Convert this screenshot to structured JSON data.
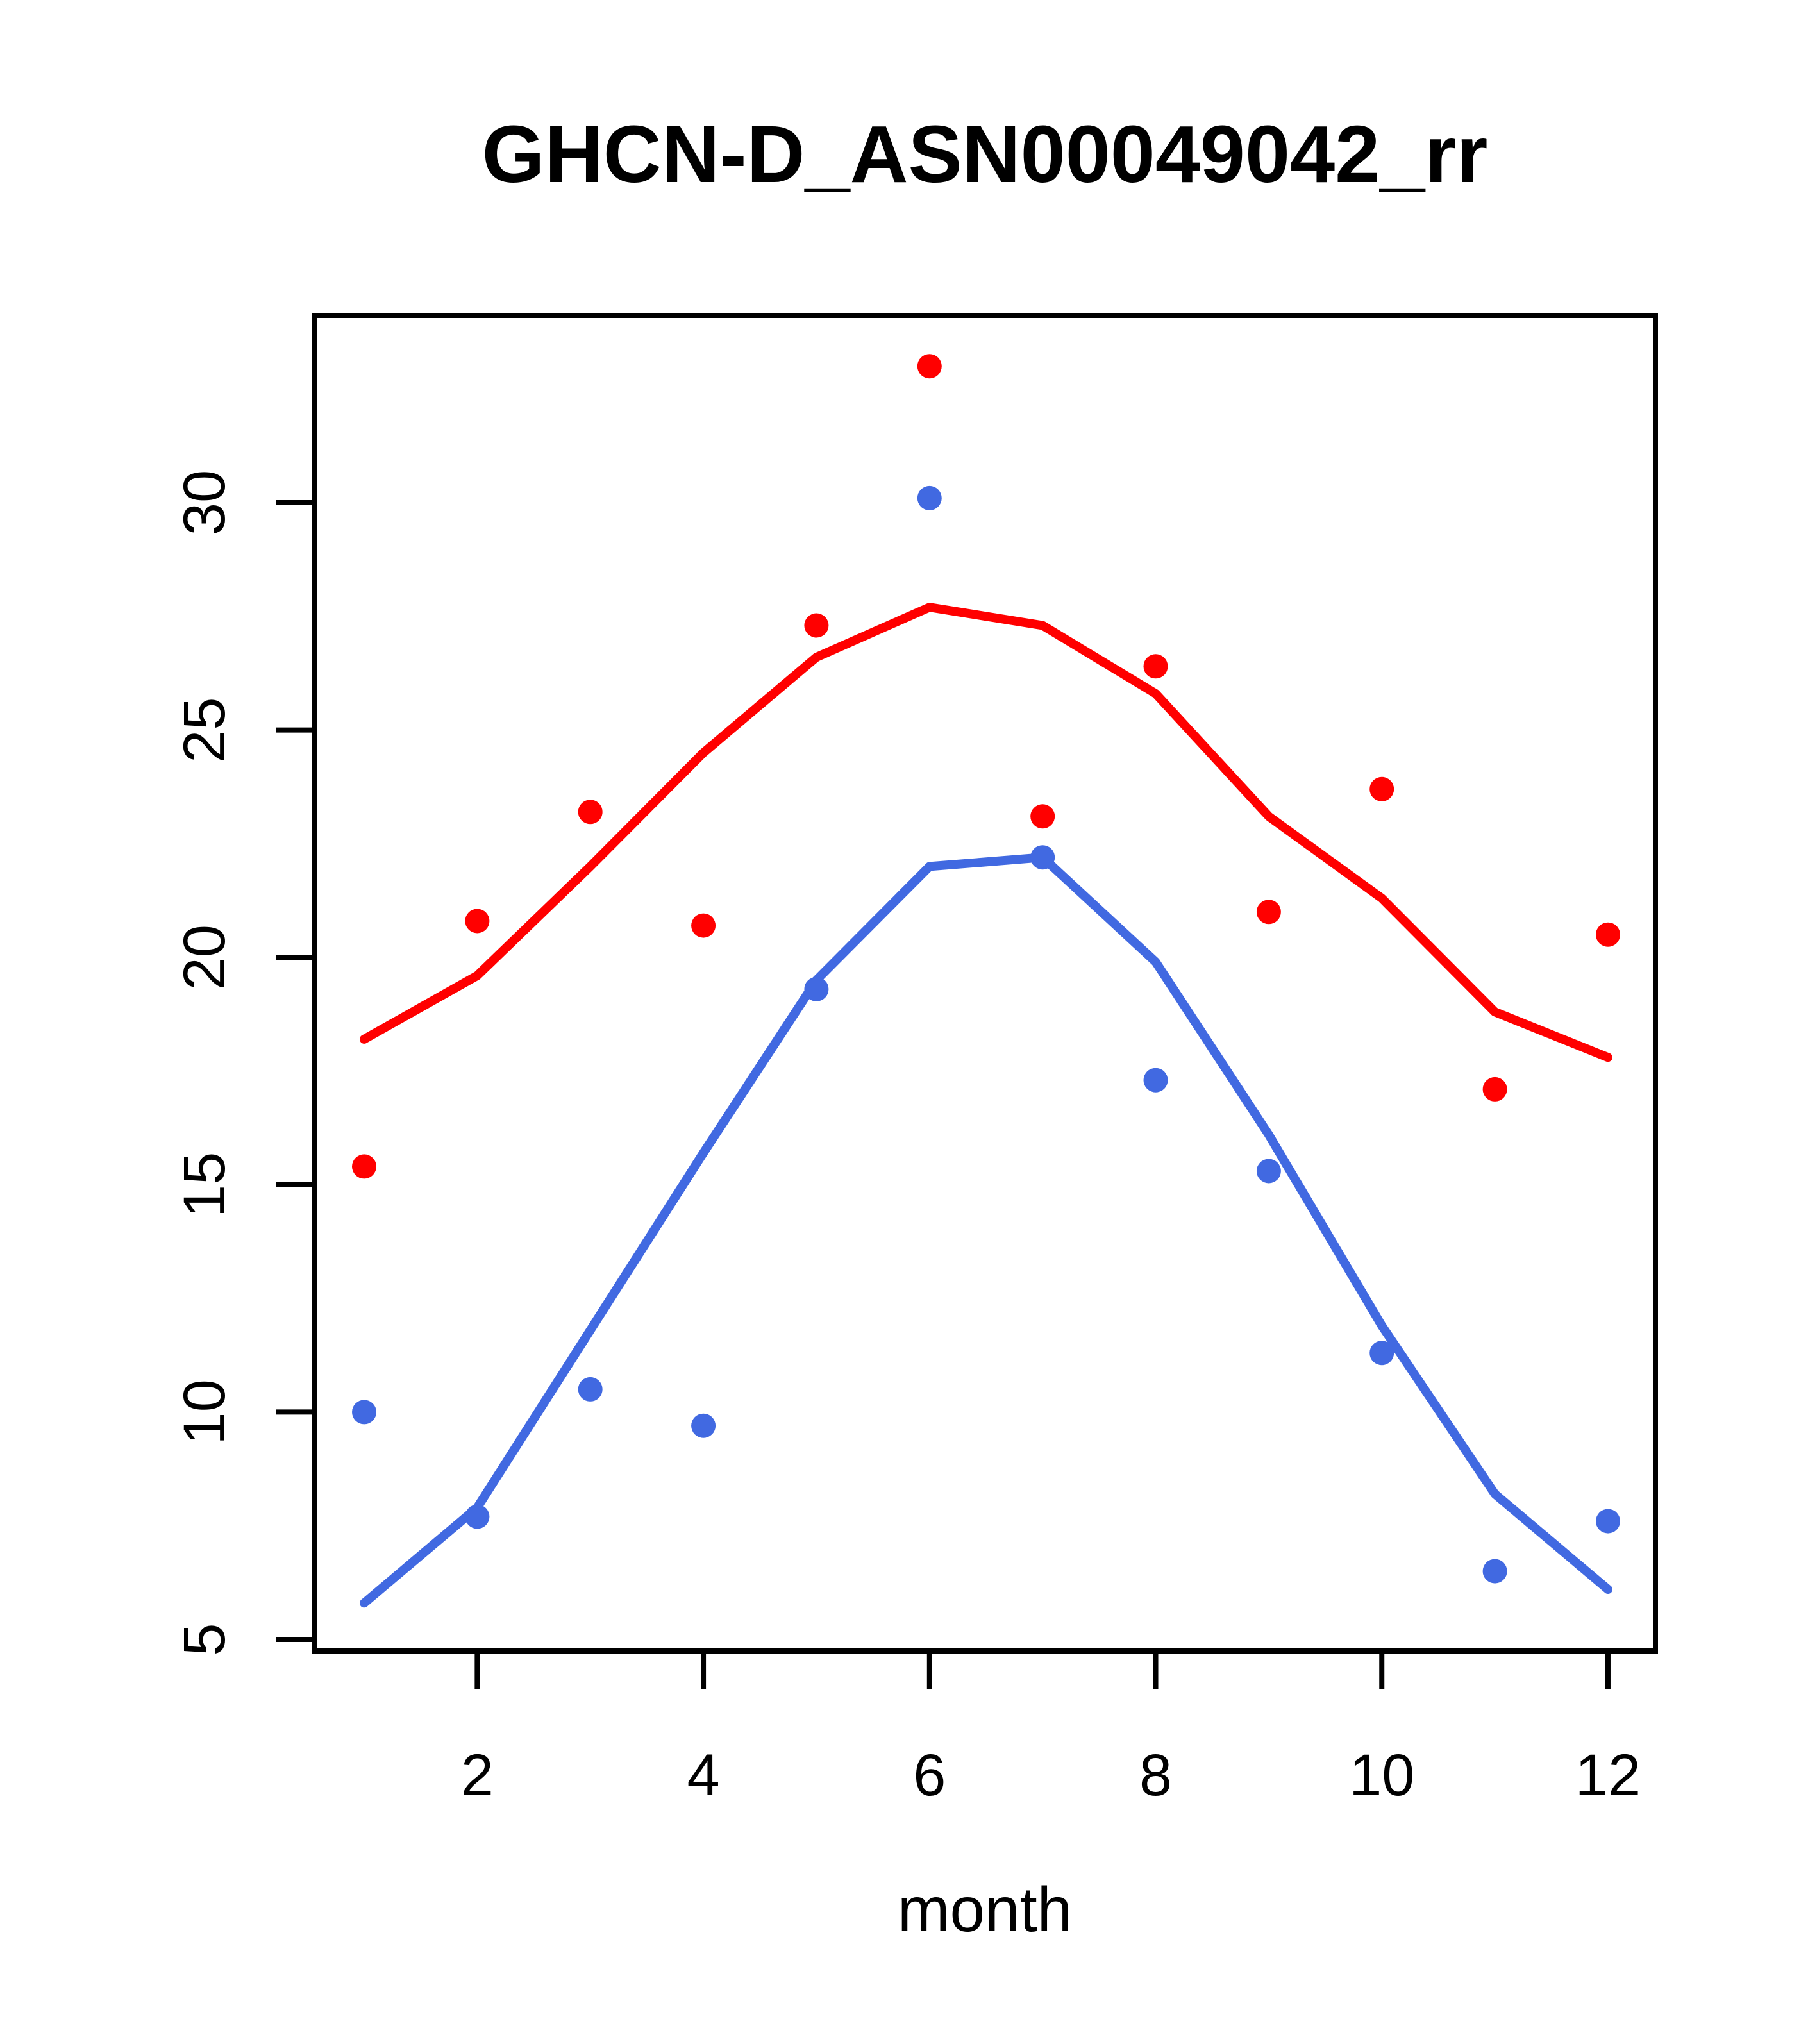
{
  "title": "GHCN-D_ASN00049042_rr",
  "x_axis": {
    "label": "month",
    "tick_labels": [
      "2",
      "4",
      "6",
      "8",
      "10",
      "12"
    ],
    "tick_months": [
      2,
      4,
      6,
      8,
      10,
      12
    ],
    "range": [
      1,
      12
    ]
  },
  "y_axis": {
    "label": "",
    "tick_labels": [
      "5",
      "10",
      "15",
      "20",
      "25",
      "30"
    ],
    "tick_values": [
      5,
      10,
      15,
      20,
      25,
      30
    ],
    "range": [
      4.7,
      34.1
    ]
  },
  "colors": {
    "red_series": "#ff0000",
    "blue_series": "#4169e1",
    "axis": "#000000",
    "background": "#ffffff"
  },
  "chart_data": {
    "type": "scatter",
    "title": "GHCN-D_ASN00049042_rr",
    "xlabel": "month",
    "ylabel": "",
    "x": [
      1,
      2,
      3,
      4,
      5,
      6,
      7,
      8,
      9,
      10,
      11,
      12
    ],
    "xlim": [
      0.56,
      12.44
    ],
    "ylim": [
      4.7,
      34.1
    ],
    "grid": false,
    "legend": "none",
    "series": [
      {
        "name": "red-points",
        "type": "scatter",
        "color_key": "red_series",
        "values": [
          15.4,
          20.8,
          23.2,
          20.7,
          27.3,
          33.0,
          23.1,
          26.4,
          21.0,
          23.7,
          17.1,
          20.5
        ]
      },
      {
        "name": "red-fit-line",
        "type": "line",
        "color_key": "red_series",
        "values": [
          18.2,
          19.6,
          22.0,
          24.5,
          26.6,
          27.7,
          27.3,
          25.8,
          23.1,
          21.3,
          18.8,
          17.8
        ]
      },
      {
        "name": "blue-points",
        "type": "scatter",
        "color_key": "blue_series",
        "values": [
          10.0,
          7.7,
          10.5,
          9.7,
          19.3,
          30.1,
          22.2,
          17.3,
          15.3,
          11.3,
          6.5,
          7.6
        ]
      },
      {
        "name": "blue-fit-line",
        "type": "line",
        "color_key": "blue_series",
        "values": [
          5.8,
          7.9,
          11.8,
          15.7,
          19.5,
          22.0,
          22.2,
          19.9,
          16.1,
          11.9,
          8.2,
          6.1
        ]
      }
    ]
  }
}
